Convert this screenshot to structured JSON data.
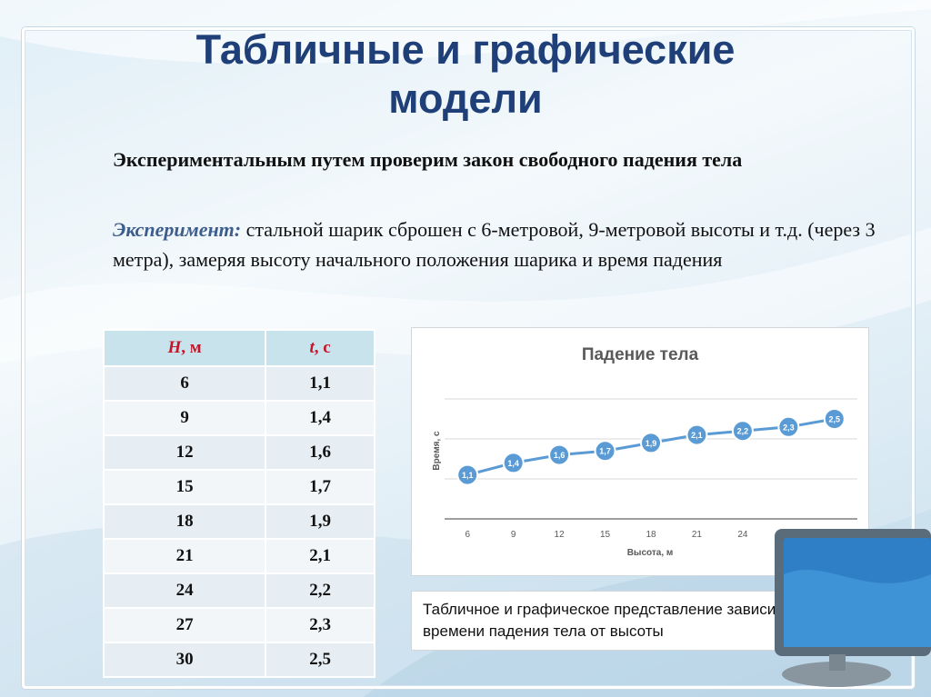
{
  "title": {
    "line1": "Табличные и графические",
    "line2": "модели"
  },
  "intro": "Экспериментальным путем проверим закон свободного падения тела",
  "experiment": {
    "label": "Эксперимент:",
    "text": " стальной шарик сброшен с 6-метровой, 9-метровой высоты и т.д. (через 3 метра), замеряя высоту начального положения шарика и время падения"
  },
  "table": {
    "headers": [
      {
        "var": "H",
        "unit": ", м"
      },
      {
        "var": "t",
        "unit": ", с"
      }
    ],
    "rows": [
      [
        "6",
        "1,1"
      ],
      [
        "9",
        "1,4"
      ],
      [
        "12",
        "1,6"
      ],
      [
        "15",
        "1,7"
      ],
      [
        "18",
        "1,9"
      ],
      [
        "21",
        "2,1"
      ],
      [
        "24",
        "2,2"
      ],
      [
        "27",
        "2,3"
      ],
      [
        "30",
        "2,5"
      ]
    ]
  },
  "chart_data": {
    "type": "line",
    "title": "Падение тела",
    "xlabel": "Высота, м",
    "ylabel": "Время, с",
    "x": [
      6,
      9,
      12,
      15,
      18,
      21,
      24,
      27,
      30
    ],
    "values": [
      1.1,
      1.4,
      1.6,
      1.7,
      1.9,
      2.1,
      2.2,
      2.3,
      2.5
    ],
    "data_labels": [
      "1,1",
      "1,4",
      "1,6",
      "1,7",
      "1,9",
      "2,1",
      "2,2",
      "2,3",
      "2,5"
    ],
    "ylim": [
      0,
      3
    ],
    "grid": true,
    "line_color": "#5b9bd5",
    "marker_color": "#5b9bd5"
  },
  "caption": "Табличное и графическое представление зависимости времени падения тела от высоты",
  "colors": {
    "title": "#1f3f78",
    "experiment_label": "#3d5d8c",
    "table_header_text": "#c4162a",
    "table_header_bg": "#c9e3ec"
  }
}
